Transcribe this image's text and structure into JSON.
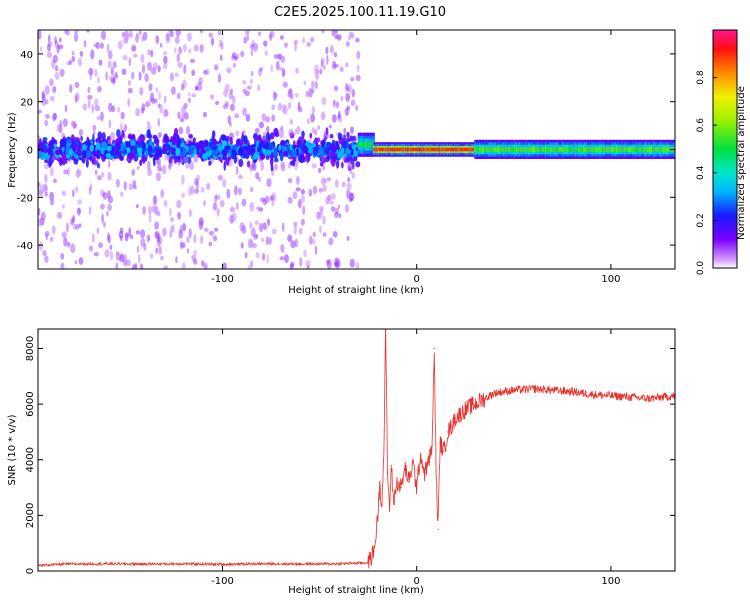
{
  "figure": {
    "title": "C2E5.2025.100.11.19.G10"
  },
  "chart_data": [
    {
      "type": "heatmap",
      "xlabel": "Height of straight line (km)",
      "ylabel": "Frequency (Hz)",
      "xlim": [
        -195,
        133
      ],
      "ylim": [
        -50,
        50
      ],
      "x_ticks": [
        -100,
        0,
        100
      ],
      "y_ticks": [
        -40,
        -20,
        0,
        20,
        40
      ],
      "grid": false,
      "colorbar": {
        "label": "Normalized spectral amplitude",
        "range": [
          0.0,
          1.0
        ],
        "ticks": [
          0.0,
          0.2,
          0.4,
          0.6,
          0.8
        ],
        "colormap": "hsv-rainbow (purple to red)"
      },
      "regions": [
        {
          "x_from": -195,
          "x_to": -30,
          "description_value": "broadband scattered noise",
          "center_freq": 0,
          "spread_hz": 50,
          "amplitude": 0.25
        },
        {
          "x_from": -30,
          "x_to": -22,
          "center_freq": 2,
          "spread_hz": 5,
          "amplitude": 0.5
        },
        {
          "x_from": -22,
          "x_to": 30,
          "center_freq": 0,
          "spread_hz": 3,
          "amplitude": 0.9
        },
        {
          "x_from": 30,
          "x_to": 133,
          "center_freq": 0,
          "spread_hz": 4,
          "amplitude": 0.55
        }
      ]
    },
    {
      "type": "line",
      "xlabel": "Height of straight line (km)",
      "ylabel": "SNR (10 * v/v)",
      "xlim": [
        -195,
        133
      ],
      "ylim": [
        0,
        8700
      ],
      "x_ticks": [
        -100,
        0,
        100
      ],
      "y_ticks": [
        0,
        2000,
        4000,
        6000,
        8000
      ],
      "grid": false,
      "series": [
        {
          "color": "#e8312b",
          "x": [
            -195,
            -180,
            -160,
            -140,
            -120,
            -100,
            -80,
            -60,
            -40,
            -25,
            -22,
            -20,
            -19,
            -18,
            -17,
            -16,
            -15,
            -14,
            -13,
            -12,
            -10,
            -8,
            -6,
            -4,
            -2,
            0,
            2,
            4,
            6,
            8,
            9,
            10,
            11,
            12,
            14,
            16,
            18,
            20,
            25,
            30,
            35,
            40,
            50,
            60,
            70,
            80,
            90,
            100,
            110,
            120,
            133
          ],
          "values": [
            200,
            250,
            260,
            250,
            260,
            240,
            260,
            250,
            260,
            300,
            700,
            2000,
            3200,
            2400,
            4000,
            8700,
            3500,
            2200,
            3800,
            2500,
            3200,
            3000,
            3700,
            3200,
            3900,
            3000,
            4200,
            3500,
            3900,
            4500,
            8000,
            3600,
            1500,
            4600,
            4300,
            5000,
            5200,
            5500,
            5800,
            6000,
            6200,
            6400,
            6500,
            6550,
            6500,
            6450,
            6350,
            6300,
            6250,
            6200,
            6300
          ]
        }
      ]
    }
  ]
}
